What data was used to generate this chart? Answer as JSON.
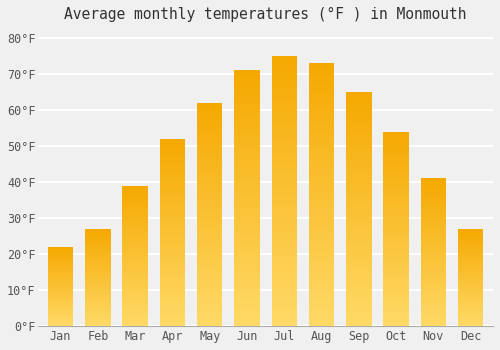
{
  "title": "Average monthly temperatures (°F ) in Monmouth",
  "months": [
    "Jan",
    "Feb",
    "Mar",
    "Apr",
    "May",
    "Jun",
    "Jul",
    "Aug",
    "Sep",
    "Oct",
    "Nov",
    "Dec"
  ],
  "values": [
    22,
    27,
    39,
    52,
    62,
    71,
    75,
    73,
    65,
    54,
    41,
    27
  ],
  "bar_color_top": "#F5A800",
  "bar_color_bottom": "#FFD966",
  "background_color": "#f0f0f0",
  "grid_color": "#ffffff",
  "yticks": [
    0,
    10,
    20,
    30,
    40,
    50,
    60,
    70,
    80
  ],
  "ylim": [
    0,
    83
  ],
  "title_fontsize": 10.5,
  "tick_fontsize": 8.5,
  "font_family": "monospace"
}
